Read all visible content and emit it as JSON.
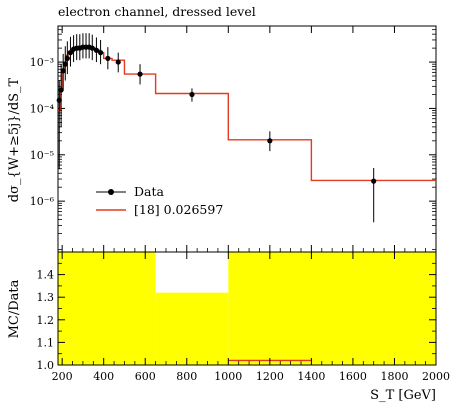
{
  "chart_data": [
    {
      "type": "line",
      "title": "electron channel, dressed level",
      "ylabel": "dσ_{W+≥5j}/dS_T",
      "yscale": "log",
      "ylim": [
        8e-08,
        0.006
      ],
      "xlim": [
        180,
        2000
      ],
      "y_ticks": [
        {
          "value": 0.001,
          "label": "10⁻³"
        },
        {
          "value": 0.0001,
          "label": "10⁻⁴"
        },
        {
          "value": 1e-05,
          "label": "10⁻⁵"
        },
        {
          "value": 1e-06,
          "label": "10⁻⁶"
        }
      ],
      "legend_position": "lower-left",
      "series": [
        {
          "name": "Data",
          "style": "points-with-errorbars",
          "color": "#000000",
          "points": [
            {
              "x": 186,
              "y": 0.00015,
              "ylo": 5e-06,
              "yhi": 0.0004
            },
            {
              "x": 195,
              "y": 0.00025,
              "ylo": 4e-05,
              "yhi": 0.0009
            },
            {
              "x": 205,
              "y": 0.00065,
              "ylo": 0.00025,
              "yhi": 0.0015
            },
            {
              "x": 215,
              "y": 0.0009,
              "ylo": 0.0004,
              "yhi": 0.0022
            },
            {
              "x": 225,
              "y": 0.0012,
              "ylo": 0.00055,
              "yhi": 0.0028
            },
            {
              "x": 240,
              "y": 0.0016,
              "ylo": 0.0008,
              "yhi": 0.0035
            },
            {
              "x": 255,
              "y": 0.0019,
              "ylo": 0.001,
              "yhi": 0.0038
            },
            {
              "x": 270,
              "y": 0.002,
              "ylo": 0.0011,
              "yhi": 0.004
            },
            {
              "x": 285,
              "y": 0.002,
              "ylo": 0.0011,
              "yhi": 0.004
            },
            {
              "x": 300,
              "y": 0.0021,
              "ylo": 0.0012,
              "yhi": 0.0042
            },
            {
              "x": 315,
              "y": 0.0021,
              "ylo": 0.0012,
              "yhi": 0.0042
            },
            {
              "x": 330,
              "y": 0.0021,
              "ylo": 0.0012,
              "yhi": 0.0042
            },
            {
              "x": 345,
              "y": 0.002,
              "ylo": 0.0011,
              "yhi": 0.0039
            },
            {
              "x": 365,
              "y": 0.0018,
              "ylo": 0.001,
              "yhi": 0.0034
            },
            {
              "x": 385,
              "y": 0.0016,
              "ylo": 0.0009,
              "yhi": 0.003
            },
            {
              "x": 420,
              "y": 0.0012,
              "ylo": 0.0007,
              "yhi": 0.0021
            },
            {
              "x": 470,
              "y": 0.001,
              "ylo": 0.0006,
              "yhi": 0.0016
            },
            {
              "x": 575,
              "y": 0.00055,
              "ylo": 0.00033,
              "yhi": 0.0009
            },
            {
              "x": 825,
              "y": 0.0002,
              "ylo": 0.00014,
              "yhi": 0.00027
            },
            {
              "x": 1200,
              "y": 2e-05,
              "ylo": 1.2e-05,
              "yhi": 3.2e-05
            },
            {
              "x": 1700,
              "y": 2.7e-06,
              "ylo": 3.5e-07,
              "yhi": 5.2e-06
            }
          ]
        },
        {
          "name": "[18] 0.026597",
          "style": "histogram-step",
          "color": "#e33b1e",
          "edges": [
            180,
            190,
            200,
            210,
            220,
            230,
            250,
            260,
            280,
            300,
            320,
            340,
            360,
            380,
            400,
            440,
            500,
            650,
            1000,
            1400,
            2000
          ],
          "values": [
            9e-05,
            0.00025,
            0.0006,
            0.001,
            0.0014,
            0.0017,
            0.002,
            0.0021,
            0.0022,
            0.0022,
            0.0021,
            0.002,
            0.0018,
            0.0016,
            0.0012,
            0.0011,
            0.00055,
            0.00021,
            2.1e-05,
            2.8e-06
          ]
        }
      ]
    },
    {
      "type": "bar",
      "ylabel": "MC/Data",
      "xlabel": "S_T [GeV]",
      "xlim": [
        180,
        2000
      ],
      "ylim": [
        1.0,
        1.5
      ],
      "x_ticks": [
        200,
        400,
        600,
        800,
        1000,
        1200,
        1400,
        1600,
        1800,
        2000
      ],
      "y_ticks": [
        1.0,
        1.1,
        1.2,
        1.3,
        1.4
      ],
      "band_color": "#ffff00",
      "ratio_line_color": "#e33b1e",
      "bands": [
        {
          "x0": 180,
          "x1": 650,
          "lo": 1.0,
          "hi": 1.5
        },
        {
          "x0": 650,
          "x1": 1000,
          "lo": 1.0,
          "hi": 1.32
        },
        {
          "x0": 1000,
          "x1": 2000,
          "lo": 1.0,
          "hi": 1.5
        }
      ],
      "ratio_segments": [
        {
          "x0": 1000,
          "x1": 1400,
          "y": 1.02
        }
      ]
    }
  ]
}
